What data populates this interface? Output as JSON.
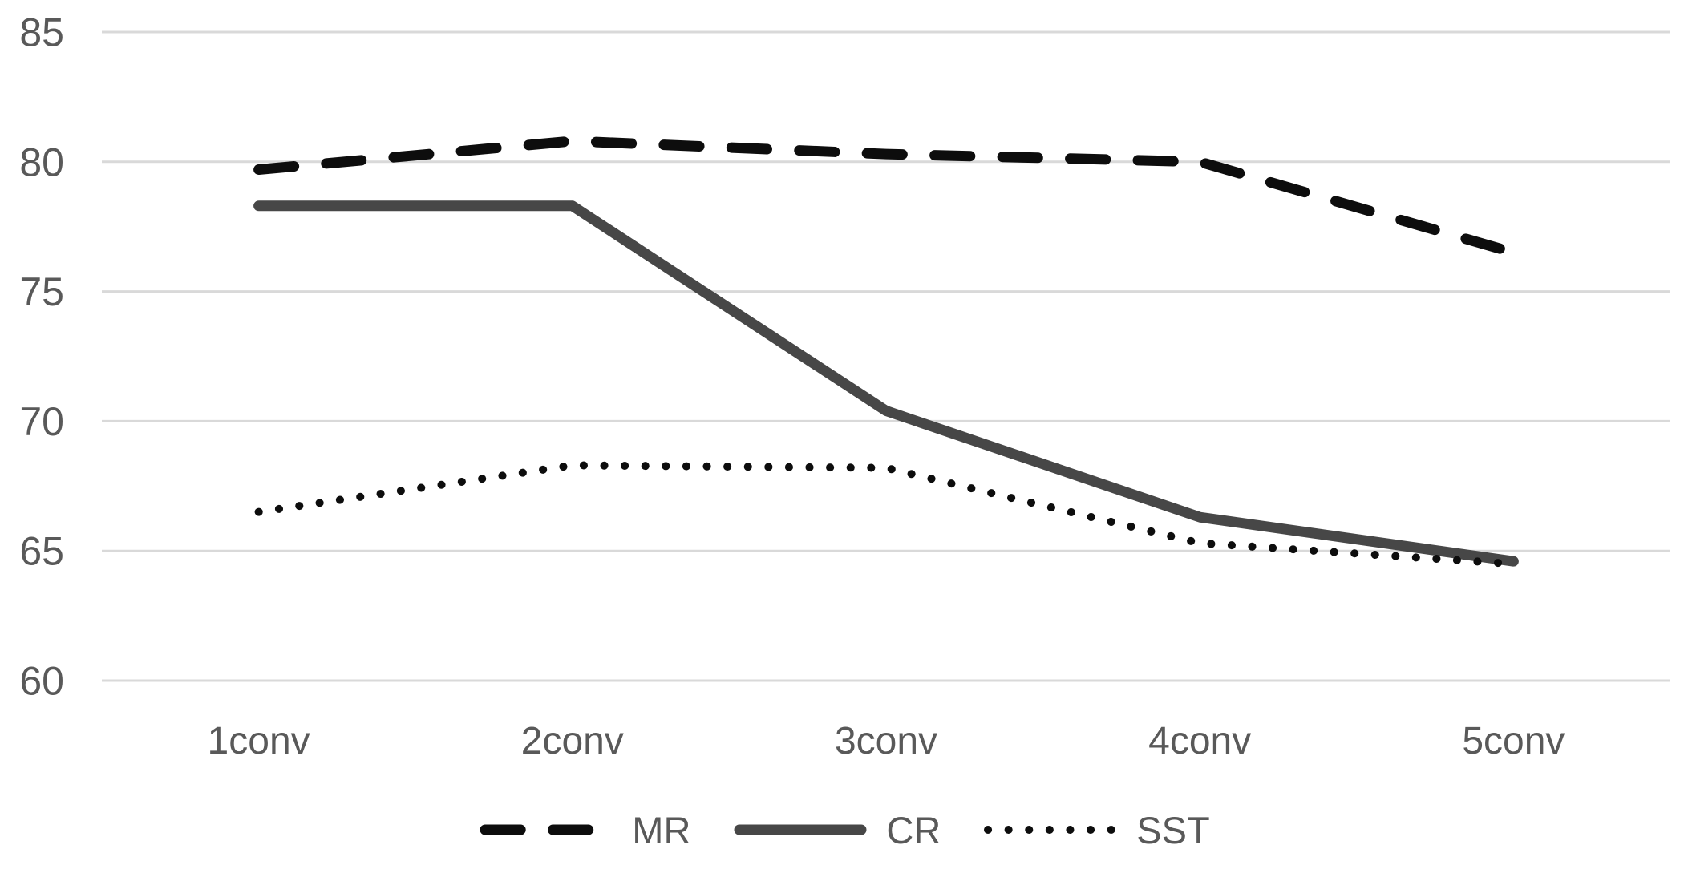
{
  "chart_data": {
    "type": "line",
    "categories": [
      "1conv",
      "2conv",
      "3conv",
      "4conv",
      "5conv"
    ],
    "series": [
      {
        "name": "MR",
        "values": [
          79.7,
          80.8,
          80.3,
          80.0,
          76.5
        ],
        "color": "#0d0d0d",
        "style": "dashed",
        "width": 13
      },
      {
        "name": "CR",
        "values": [
          78.3,
          78.3,
          70.4,
          66.3,
          64.6
        ],
        "color": "#474747",
        "style": "solid",
        "width": 13
      },
      {
        "name": "SST",
        "values": [
          66.5,
          68.3,
          68.2,
          65.3,
          64.5
        ],
        "color": "#0d0d0d",
        "style": "dotted",
        "width": 10
      }
    ],
    "title": "",
    "xlabel": "",
    "ylabel": "",
    "ylim": [
      60,
      85
    ],
    "yticks": [
      60,
      65,
      70,
      75,
      80,
      85
    ],
    "grid": true,
    "legend_position": "bottom",
    "colors": {
      "background": "#ffffff",
      "gridline": "#d9d9d9",
      "axis_text": "#595959"
    }
  }
}
